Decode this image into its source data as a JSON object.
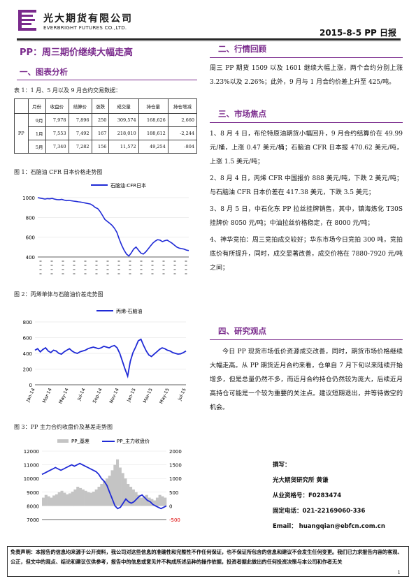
{
  "header": {
    "company_cn": "光大期货有限公司",
    "company_en": "EVERBRIGHT FUTURES CO.,LTD.",
    "date_report": "2015-8-5   PP 日报"
  },
  "main_title": "PP：周三期价继续大幅走高",
  "sections": {
    "s1": "一、图表分析",
    "s2": "二、行情回顾",
    "s3": "三、市场焦点",
    "s4": "四、研究观点"
  },
  "table1": {
    "caption": "表 1：1 月、5 月以及 9 月合约交易数据：",
    "headers": [
      "",
      "月份",
      "收盘价",
      "结算价",
      "涨跌",
      "成交量",
      "持仓量",
      "持仓增减"
    ],
    "product": "PP",
    "rows": [
      [
        "9月",
        "7,978",
        "7,896",
        "250",
        "309,574",
        "168,626",
        "2,660"
      ],
      [
        "1月",
        "7,553",
        "7,492",
        "167",
        "218,010",
        "188,612",
        "-2,244"
      ],
      [
        "5月",
        "7,340",
        "7,282",
        "156",
        "11,572",
        "49,254",
        "-804"
      ]
    ]
  },
  "chart_data": [
    {
      "type": "line",
      "caption": "图 1：石脑油 CFR 日本价格走势图",
      "legend": "石脑油:CFR日本",
      "ylim": [
        400,
        1000
      ],
      "yticks": [
        "1000",
        "800",
        "600",
        "400"
      ],
      "color": "#1f2ad6",
      "values": [
        1000,
        995,
        990,
        985,
        990,
        988,
        992,
        985,
        980,
        978,
        982,
        975,
        970,
        972,
        968,
        965,
        962,
        958,
        955,
        950,
        945,
        940,
        935,
        920,
        900,
        890,
        860,
        820,
        780,
        760,
        740,
        720,
        690,
        650,
        580,
        520,
        470,
        430,
        410,
        440,
        480,
        500,
        470,
        440,
        430,
        450,
        480,
        510,
        540,
        560,
        575,
        570,
        555,
        565,
        570,
        555,
        540,
        520,
        500,
        490,
        485,
        480,
        470,
        465
      ]
    },
    {
      "type": "line",
      "caption": "图 2：丙烯单体与石脑油价差走势图",
      "legend": "丙烯-石脑油",
      "ylim": [
        0,
        800
      ],
      "yticks": [
        "800",
        "600",
        "400",
        "200",
        "0"
      ],
      "xticks": [
        "Jan-14",
        "Mar-14",
        "May-14",
        "Jul-14",
        "Sep-14",
        "Nov-14",
        "Jan-15",
        "Mar-15",
        "May-15",
        "Jul-15"
      ],
      "color": "#1f2ad6",
      "values": [
        440,
        460,
        420,
        450,
        470,
        430,
        410,
        440,
        430,
        400,
        390,
        420,
        440,
        460,
        430,
        410,
        400,
        420,
        430,
        440,
        460,
        470,
        480,
        470,
        460,
        470,
        490,
        480,
        470,
        490,
        500,
        470,
        400,
        300,
        200,
        110,
        300,
        410,
        480,
        560,
        580,
        500,
        430,
        380,
        360,
        390,
        420,
        450,
        470,
        460,
        440,
        430,
        410,
        400,
        390,
        395,
        410,
        430
      ]
    },
    {
      "type": "bar",
      "caption": "图 3：PP 主力合约收盘价及基差走势图",
      "legend": [
        "PP_基差",
        "PP_主力收盘价"
      ],
      "ylim_left": [
        7000,
        12000
      ],
      "ylim_right": [
        -500,
        2000
      ],
      "yticks_left": [
        "12000",
        "11000",
        "10000",
        "9000",
        "8000",
        "7000"
      ],
      "yticks_right": [
        "2000",
        "1500",
        "1000",
        "500",
        "0",
        "-500"
      ],
      "bar_color": "#c4c4c4",
      "line_color": "#1f2ad6",
      "basis": [
        300,
        400,
        350,
        300,
        380,
        420,
        500,
        550,
        480,
        420,
        460,
        520,
        600,
        700,
        650,
        600,
        550,
        500,
        480,
        520,
        600,
        700,
        800,
        900,
        1000,
        1100,
        1300,
        1500,
        1700,
        1400,
        1200,
        1000,
        800,
        700,
        600,
        500,
        400,
        300,
        350,
        400,
        300,
        250,
        200,
        300,
        400,
        350,
        300
      ],
      "price": [
        10300,
        10400,
        10500,
        10600,
        10700,
        10800,
        10700,
        10600,
        10700,
        10800,
        10900,
        11000,
        10900,
        11000,
        11100,
        11000,
        10900,
        10800,
        10700,
        10600,
        10500,
        10300,
        10000,
        9800,
        9500,
        9000,
        8500,
        8000,
        7800,
        7900,
        8200,
        8500,
        8300,
        8200,
        8300,
        8500,
        8700,
        8800,
        8600,
        8400,
        8300,
        8100,
        8000,
        7900,
        7800,
        7900,
        8000
      ]
    }
  ],
  "review": {
    "p1": "周三 PP 期货 1509 以及 1601 继续大幅上涨，两个合约分别上涨 3.23%以及 2.26%；此外，9 月与 1 月合约价差上升至 425/吨。"
  },
  "focus": {
    "p1": "1、8 月 4 日，布伦特原油期货小幅回升，9 月合约结算价在 49.99 元/桶，上涨 0.47 美元/桶；石脑油 CFR 日本报 470.62 美元/吨，上涨 1.5 美元/吨；",
    "p2": "2、8 月 4 日，丙烯 CFR 中国报价 888 美元/吨，下跌 2 美元/吨；与石脑油 CFR 日本价差在 417.38 美元，下跌 3.5 美元；",
    "p3": "3、8 月 5 日，中石化东 PP 拉丝挂牌销售，其中，镇海炼化 T30S 挂牌价 8050 元/吨；中油拉丝价格稳定，在 8000 元/吨；",
    "p4": "4、神华竞拍：周三竞拍成交较好；华东市场今日竞拍 300 吨，竞拍底价有所提升，同时，成交显著改善，成交价格在 7880-7920 元/吨之间；"
  },
  "opinion": {
    "p1": "今日 PP 现货市场低价资源成交改善，同时，期货市场价格继续大幅走高。从 PP 期货近月合约来看，仓单自 7 月下旬以来陆续开始增多，但是总量仍然不多，而近月合约持仓仍然较为庞大，后续近月高持仓可能是一个较为重要的关注点。建议短期退出，并等待做空的机会。"
  },
  "author": {
    "l1": "撰写：",
    "l2": "光大期货研究所     黄谦",
    "l3": "从业资格号：F0283474",
    "l4": "固定电话：021-22169060-336",
    "l5": "Email：  huangqian@ebfcn.com.cn"
  },
  "disclaimer": "免责声明：本报告的信息均来源于公开资料，我公司对这些信息的准确性和完整性不作任何保证，也不保证所包含的信息和建议不会发生任何变更。我们已力求报告内容的客观、公正，但文中的观点、结论和建议仅供参考，报告中的信息或意见并不构成所述品种的操作依据，投资者据此做出的任何投资决策与本公司和作者无关",
  "page_number": "1"
}
